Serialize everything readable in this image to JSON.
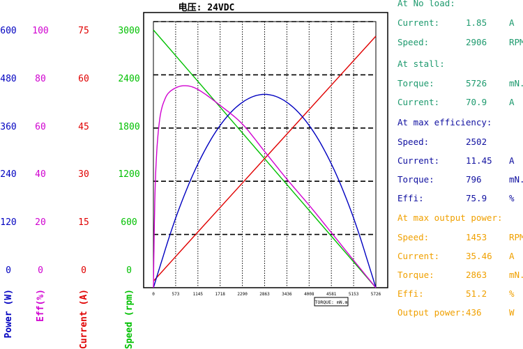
{
  "chart_data": {
    "type": "line",
    "title": "电压: 24VDC",
    "xlabel": "TORQUE: mN.m",
    "xlim": [
      0,
      5726
    ],
    "x_ticks": [
      "0",
      "573",
      "1145",
      "1718",
      "2290",
      "2863",
      "3436",
      "4008",
      "4581",
      "5153",
      "5726"
    ],
    "axes": [
      {
        "key": "power",
        "label": "Power (W)",
        "color": "#0000c0",
        "ticks": [
          "0",
          "120",
          "240",
          "360",
          "480",
          "600"
        ],
        "ylim": [
          0,
          600
        ]
      },
      {
        "key": "eff",
        "label": "Eff(%)",
        "color": "#d000d0",
        "ticks": [
          "0",
          "20",
          "40",
          "60",
          "80",
          "100"
        ],
        "ylim": [
          0,
          100
        ]
      },
      {
        "key": "current",
        "label": "Current (A)",
        "color": "#e00000",
        "ticks": [
          "0",
          "15",
          "30",
          "45",
          "60",
          "75"
        ],
        "ylim": [
          0,
          75
        ]
      },
      {
        "key": "speed",
        "label": "Speed (rpm)",
        "color": "#00c000",
        "ticks": [
          "0",
          "600",
          "1200",
          "1800",
          "2400",
          "3000"
        ],
        "ylim": [
          0,
          3000
        ]
      }
    ],
    "series": [
      {
        "key": "speed",
        "color": "#00c000",
        "x": [
          0,
          1145,
          2290,
          3436,
          4581,
          5726
        ],
        "y": [
          2906,
          2326,
          1745,
          1163,
          581,
          0
        ]
      },
      {
        "key": "current",
        "color": "#e00000",
        "x": [
          0,
          1145,
          2290,
          3436,
          4581,
          5726
        ],
        "y": [
          1.85,
          15.7,
          29.5,
          43.3,
          57.1,
          70.9
        ]
      },
      {
        "key": "power",
        "color": "#0000c0",
        "x": [
          0,
          573,
          1145,
          1718,
          2290,
          2863,
          3436,
          4008,
          4581,
          5153,
          5726
        ],
        "y": [
          0,
          157,
          279,
          366,
          418,
          436,
          418,
          366,
          279,
          157,
          0
        ]
      },
      {
        "key": "eff",
        "color": "#d000d0",
        "x": [
          0,
          50,
          150,
          300,
          500,
          796,
          1145,
          1718,
          2290,
          2863,
          3436,
          4008,
          4581,
          5153,
          5726
        ],
        "y": [
          0,
          40,
          62,
          71,
          74.5,
          75.9,
          74.5,
          68.5,
          61.5,
          51.2,
          40.8,
          31.0,
          20.7,
          10.3,
          0
        ]
      }
    ]
  },
  "stats": {
    "no_load_header": "At No load:",
    "no_load": [
      {
        "label": "Current:",
        "value": "1.85",
        "unit": "A"
      },
      {
        "label": "Speed:",
        "value": "2906",
        "unit": "RPM"
      }
    ],
    "stall_header": "At stall:",
    "stall": [
      {
        "label": "Torque:",
        "value": "5726",
        "unit": "mN.m"
      },
      {
        "label": "Current:",
        "value": "70.9",
        "unit": "A"
      }
    ],
    "max_eff_header": "At max efficiency:",
    "max_eff": [
      {
        "label": "Speed:",
        "value": "2502",
        "unit": ""
      },
      {
        "label": "Current:",
        "value": "11.45",
        "unit": "A"
      },
      {
        "label": "Torque:",
        "value": "796",
        "unit": "mN.m"
      },
      {
        "label": "Effi:",
        "value": "75.9",
        "unit": "%"
      }
    ],
    "max_power_header": "At max output power:",
    "max_power": [
      {
        "label": "Speed:",
        "value": "1453",
        "unit": "RPM"
      },
      {
        "label": "Current:",
        "value": "35.46",
        "unit": "A"
      },
      {
        "label": "Torque:",
        "value": "2863",
        "unit": "mN.m"
      },
      {
        "label": "Effi:",
        "value": "51.2",
        "unit": "%"
      },
      {
        "label": "Output power:",
        "value": "436",
        "unit": "W"
      }
    ],
    "colors": {
      "green": "#1e9a6e",
      "blue": "#1010a0",
      "orange": "#f0a000"
    }
  }
}
